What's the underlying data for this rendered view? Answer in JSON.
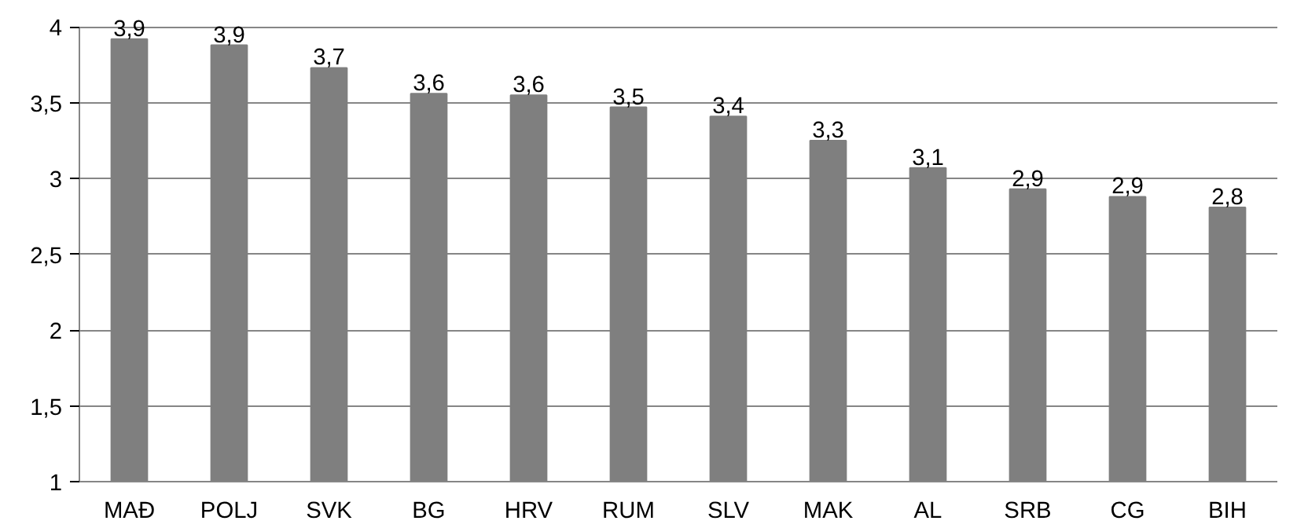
{
  "chart_data": {
    "type": "bar",
    "categories": [
      "MAĐ",
      "POLJ",
      "SVK",
      "BG",
      "HRV",
      "RUM",
      "SLV",
      "MAK",
      "AL",
      "SRB",
      "CG",
      "BIH"
    ],
    "values": [
      3.92,
      3.88,
      3.73,
      3.56,
      3.55,
      3.47,
      3.41,
      3.25,
      3.07,
      2.93,
      2.88,
      2.81
    ],
    "value_labels": [
      "3,9",
      "3,9",
      "3,7",
      "3,6",
      "3,6",
      "3,5",
      "3,4",
      "3,3",
      "3,1",
      "2,9",
      "2,9",
      "2,8"
    ],
    "color": "#7f7f7f",
    "ylim": [
      1,
      4
    ],
    "yticks": [
      1,
      {
        "value": 1.5,
        "label": "1,5"
      },
      2,
      {
        "value": 2.5,
        "label": "2,5"
      },
      3,
      {
        "value": 3.5,
        "label": "3,5"
      },
      4
    ],
    "grid": "y"
  }
}
